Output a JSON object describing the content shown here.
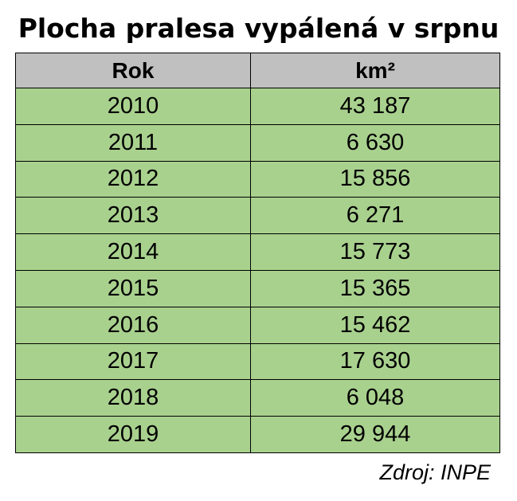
{
  "chart_data": {
    "type": "table",
    "title": "Plocha pralesa vypálená v srpnu",
    "columns": [
      "Rok",
      "km²"
    ],
    "rows": [
      {
        "year": "2010",
        "value": "43 187"
      },
      {
        "year": "2011",
        "value": "6 630"
      },
      {
        "year": "2012",
        "value": "15 856"
      },
      {
        "year": "2013",
        "value": "6 271"
      },
      {
        "year": "2014",
        "value": "15 773"
      },
      {
        "year": "2015",
        "value": "15 365"
      },
      {
        "year": "2016",
        "value": "15 462"
      },
      {
        "year": "2017",
        "value": "17 630"
      },
      {
        "year": "2018",
        "value": "6 048"
      },
      {
        "year": "2019",
        "value": "29 944"
      }
    ],
    "source": "Zdroj: INPE",
    "colors": {
      "header_bg": "#c0c0c0",
      "row_bg": "#a9d18e",
      "border": "#000000"
    }
  }
}
